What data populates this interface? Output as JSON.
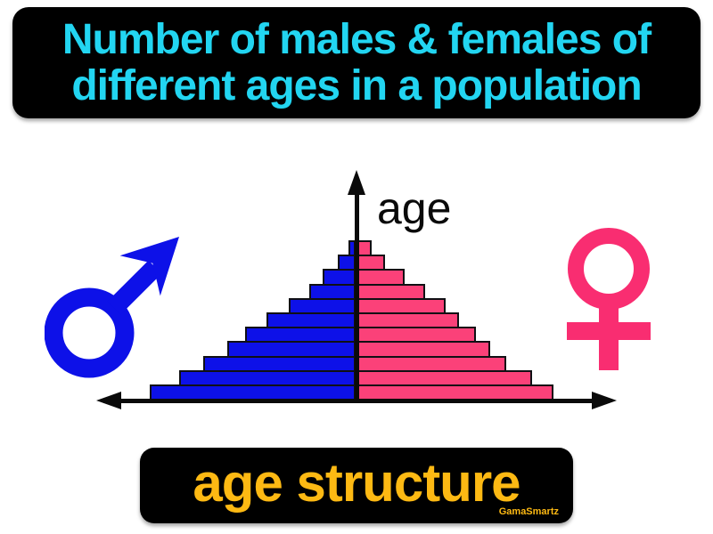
{
  "page": {
    "background": "#ffffff"
  },
  "title_banner": {
    "line1": "Number of males & females of",
    "line2": "different ages in a population",
    "text_color": "#22d5f1",
    "bg_color": "#000000"
  },
  "diagram": {
    "axis_label": "age",
    "male_symbol_glyph": "♂",
    "female_symbol_glyph": "♀",
    "colors": {
      "male_blue": "#0d11e8",
      "female_pink": "#f92d71",
      "bar_female_pink": "#fb4179",
      "bar_border": "#101014",
      "axis_black": "#0a0a0a"
    },
    "pyramid": {
      "type": "bar",
      "orientation": "mirrored-horizontal, males left / females right, youngest at bottom",
      "units": "bar half-width in px from central age axis",
      "rows_top_to_bottom": [
        {
          "male": 9,
          "female": 17
        },
        {
          "male": 21,
          "female": 32
        },
        {
          "male": 38,
          "female": 54
        },
        {
          "male": 53,
          "female": 77
        },
        {
          "male": 76,
          "female": 100
        },
        {
          "male": 101,
          "female": 115
        },
        {
          "male": 125,
          "female": 134
        },
        {
          "male": 145,
          "female": 150
        },
        {
          "male": 172,
          "female": 168
        },
        {
          "male": 199,
          "female": 197
        },
        {
          "male": 232,
          "female": 221
        }
      ]
    }
  },
  "term_banner": {
    "term": "age structure",
    "text_color": "#fdb913",
    "bg_color": "#000000",
    "watermark": "GamaSmartz"
  }
}
